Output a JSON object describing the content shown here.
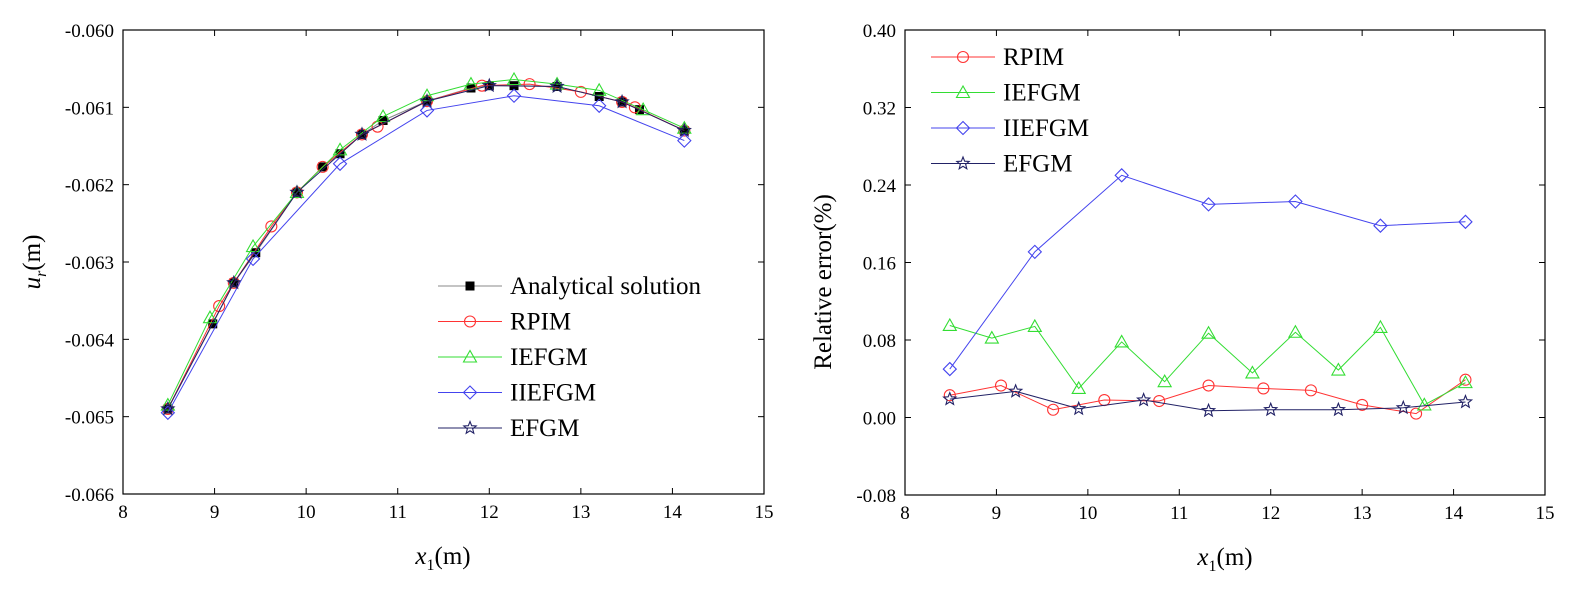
{
  "chart_data": [
    {
      "type": "line",
      "xlabel_symbol": "x",
      "xlabel_subscript": "1",
      "xlabel_unit": "(m)",
      "ylabel_symbol": "u",
      "ylabel_subscript": "r",
      "ylabel_unit": "(m)",
      "xlim": [
        8,
        15
      ],
      "ylim": [
        -0.066,
        -0.06
      ],
      "xticks": [
        "8",
        "9",
        "10",
        "11",
        "12",
        "13",
        "14",
        "15"
      ],
      "yticks": [
        "-0.060",
        "-0.061",
        "-0.062",
        "-0.063",
        "-0.064",
        "-0.065",
        "-0.066"
      ],
      "legend_position": "lower-right",
      "series": [
        {
          "name": "Analytical solution",
          "color": "#000000",
          "line_color": "#888888",
          "marker": "filled-square",
          "x": [
            8.49,
            8.98,
            9.21,
            9.45,
            9.9,
            10.18,
            10.37,
            10.61,
            10.84,
            11.32,
            11.8,
            12.0,
            12.27,
            12.74,
            13.2,
            13.45,
            13.64,
            14.13
          ],
          "y": [
            -0.0649,
            -0.0638,
            -0.06327,
            -0.06288,
            -0.0621,
            -0.06177,
            -0.0616,
            -0.06135,
            -0.06117,
            -0.06092,
            -0.06075,
            -0.06072,
            -0.06072,
            -0.06073,
            -0.06086,
            -0.06093,
            -0.06103,
            -0.0613
          ]
        },
        {
          "name": "RPIM",
          "color": "#ff3333",
          "line_color": "#ff3333",
          "marker": "circle",
          "x": [
            8.49,
            9.05,
            9.21,
            9.62,
            9.9,
            10.18,
            10.61,
            10.78,
            11.32,
            11.92,
            12.44,
            13.0,
            13.45,
            13.59,
            14.13
          ],
          "y": [
            -0.0649,
            -0.06357,
            -0.06327,
            -0.06254,
            -0.0621,
            -0.06177,
            -0.06135,
            -0.06125,
            -0.06092,
            -0.06072,
            -0.0607,
            -0.0608,
            -0.06093,
            -0.061,
            -0.0613
          ]
        },
        {
          "name": "IEFGM",
          "color": "#33dd33",
          "line_color": "#33dd33",
          "marker": "triangle",
          "x": [
            8.49,
            8.95,
            9.42,
            9.9,
            10.37,
            10.84,
            11.32,
            11.8,
            12.27,
            12.74,
            13.2,
            13.68,
            14.13
          ],
          "y": [
            -0.06485,
            -0.06372,
            -0.0628,
            -0.0621,
            -0.06155,
            -0.06112,
            -0.06085,
            -0.0607,
            -0.06064,
            -0.0607,
            -0.06078,
            -0.06103,
            -0.06127
          ]
        },
        {
          "name": "IIEFGM",
          "color": "#4444ee",
          "line_color": "#4444ee",
          "marker": "diamond",
          "x": [
            8.49,
            9.42,
            10.37,
            11.32,
            12.27,
            13.2,
            14.13
          ],
          "y": [
            -0.06495,
            -0.06296,
            -0.06173,
            -0.06104,
            -0.06085,
            -0.06098,
            -0.06143
          ]
        },
        {
          "name": "EFGM",
          "color": "#222266",
          "line_color": "#222266",
          "marker": "star",
          "x": [
            8.49,
            9.21,
            9.9,
            10.61,
            11.32,
            12.0,
            12.74,
            13.45,
            14.13
          ],
          "y": [
            -0.0649,
            -0.06327,
            -0.0621,
            -0.06135,
            -0.06092,
            -0.06072,
            -0.06073,
            -0.06093,
            -0.0613
          ]
        }
      ]
    },
    {
      "type": "line",
      "xlabel_symbol": "x",
      "xlabel_subscript": "1",
      "xlabel_unit": "(m)",
      "ylabel": "Relative error(%)",
      "xlim": [
        8,
        15
      ],
      "ylim": [
        -0.08,
        0.4
      ],
      "xticks": [
        "8",
        "9",
        "10",
        "11",
        "12",
        "13",
        "14",
        "15"
      ],
      "yticks": [
        "0.40",
        "0.32",
        "0.24",
        "0.16",
        "0.08",
        "0.00",
        "-0.08"
      ],
      "legend_position": "top-left",
      "series": [
        {
          "name": "RPIM",
          "color": "#ff3333",
          "line_color": "#ff3333",
          "marker": "circle",
          "x": [
            8.49,
            9.05,
            9.62,
            10.18,
            10.78,
            11.32,
            11.92,
            12.44,
            13.0,
            13.59,
            14.13
          ],
          "y": [
            0.023,
            0.033,
            0.008,
            0.018,
            0.017,
            0.033,
            0.03,
            0.028,
            0.013,
            0.004,
            0.039
          ]
        },
        {
          "name": "IEFGM",
          "color": "#33dd33",
          "line_color": "#33dd33",
          "marker": "triangle",
          "x": [
            8.49,
            8.95,
            9.42,
            9.9,
            10.37,
            10.84,
            11.32,
            11.8,
            12.27,
            12.74,
            13.2,
            13.68,
            14.13
          ],
          "y": [
            0.095,
            0.082,
            0.094,
            0.03,
            0.078,
            0.037,
            0.087,
            0.046,
            0.088,
            0.049,
            0.093,
            0.013,
            0.036
          ]
        },
        {
          "name": "IIEFGM",
          "color": "#4444ee",
          "line_color": "#4444ee",
          "marker": "diamond",
          "x": [
            8.49,
            9.42,
            10.37,
            11.32,
            12.27,
            13.2,
            14.13
          ],
          "y": [
            0.05,
            0.171,
            0.25,
            0.22,
            0.223,
            0.198,
            0.202
          ]
        },
        {
          "name": "EFGM",
          "color": "#222266",
          "line_color": "#222266",
          "marker": "star",
          "x": [
            8.49,
            9.21,
            9.9,
            10.61,
            11.32,
            12.0,
            12.74,
            13.45,
            14.13
          ],
          "y": [
            0.019,
            0.027,
            0.009,
            0.018,
            0.007,
            0.008,
            0.008,
            0.01,
            0.016
          ]
        }
      ]
    }
  ]
}
